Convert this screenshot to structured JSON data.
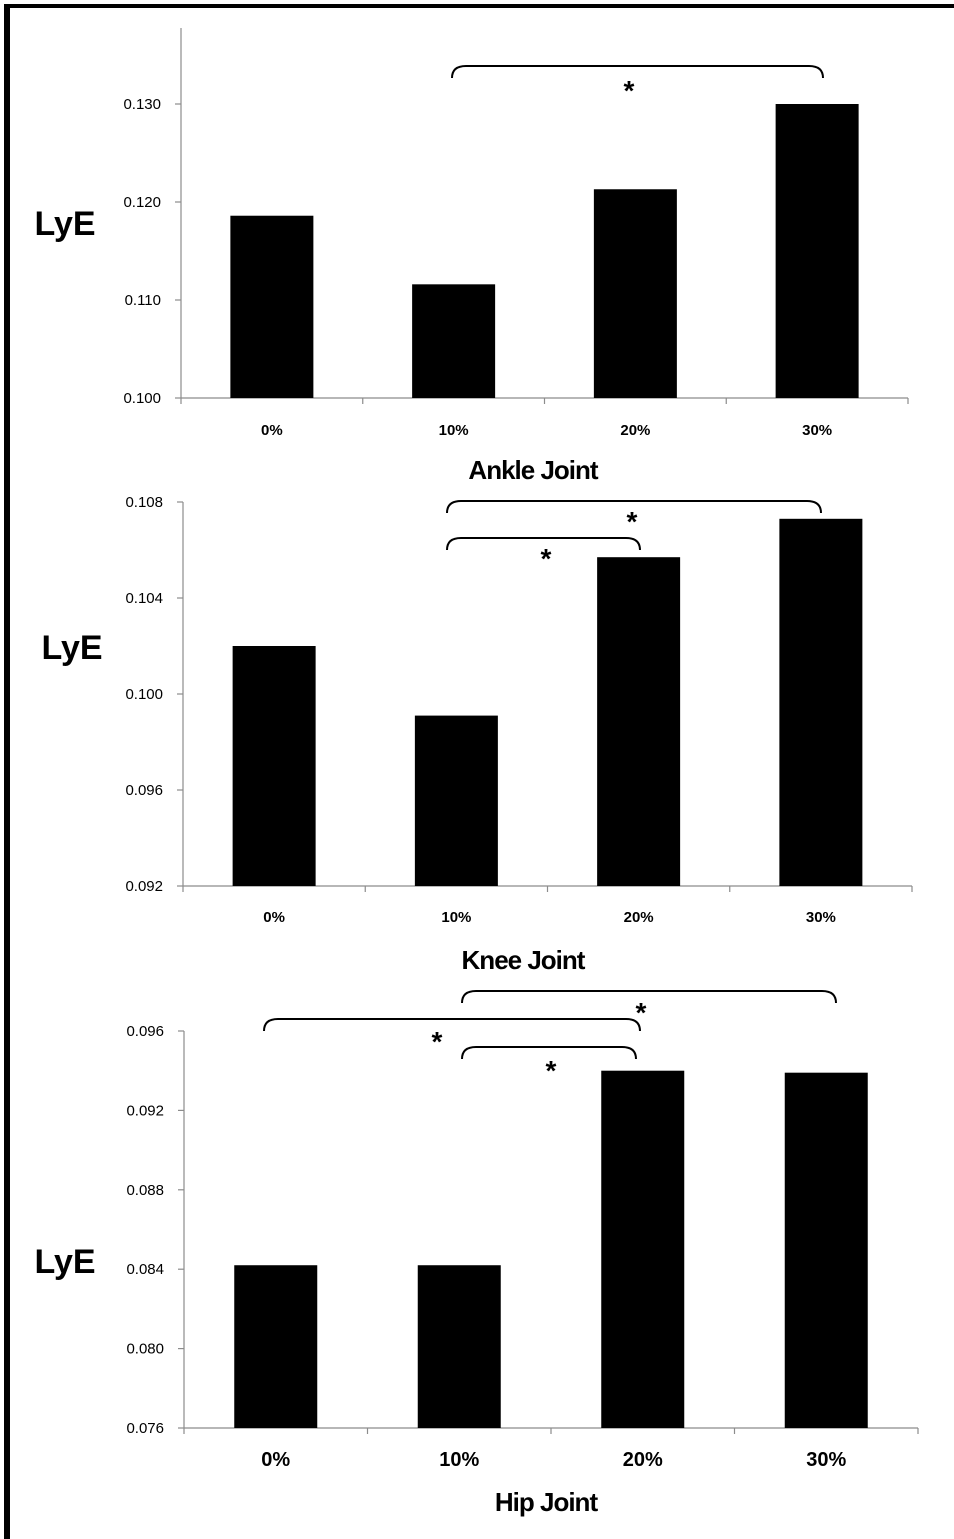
{
  "chart_data": [
    {
      "type": "bar",
      "categories": [
        "0%",
        "10%",
        "20%",
        "30%"
      ],
      "values": [
        0.1186,
        0.1116,
        0.1213,
        0.13
      ],
      "ylabel": "LyE",
      "xlabel": "Ankle Joint",
      "ylim": [
        0.1,
        0.13
      ],
      "yticks": [
        "0.100",
        "0.110",
        "0.120",
        "0.130"
      ],
      "bar_color": "#000000",
      "significance": [
        {
          "from": "10%",
          "to": "30%",
          "label": "*"
        }
      ]
    },
    {
      "type": "bar",
      "categories": [
        "0%",
        "10%",
        "20%",
        "30%"
      ],
      "values": [
        0.102,
        0.0991,
        0.1057,
        0.1073
      ],
      "ylabel": "LyE",
      "xlabel": "Knee Joint",
      "ylim": [
        0.092,
        0.108
      ],
      "yticks": [
        "0.092",
        "0.096",
        "0.100",
        "0.104",
        "0.108"
      ],
      "bar_color": "#000000",
      "significance": [
        {
          "from": "10%",
          "to": "30%",
          "label": "*"
        },
        {
          "from": "10%",
          "to": "20%",
          "label": "*"
        }
      ]
    },
    {
      "type": "bar",
      "categories": [
        "0%",
        "10%",
        "20%",
        "30%"
      ],
      "values": [
        0.0842,
        0.0842,
        0.094,
        0.0939
      ],
      "ylabel": "LyE",
      "xlabel": "Hip Joint",
      "ylim": [
        0.076,
        0.096
      ],
      "yticks": [
        "0.076",
        "0.080",
        "0.084",
        "0.088",
        "0.092",
        "0.096"
      ],
      "bar_color": "#000000",
      "significance": [
        {
          "from": "10%",
          "to": "30%",
          "label": "*"
        },
        {
          "from": "0%",
          "to": "20%",
          "label": "*"
        },
        {
          "from": "10%",
          "to": "20%",
          "label": "*"
        }
      ]
    }
  ]
}
